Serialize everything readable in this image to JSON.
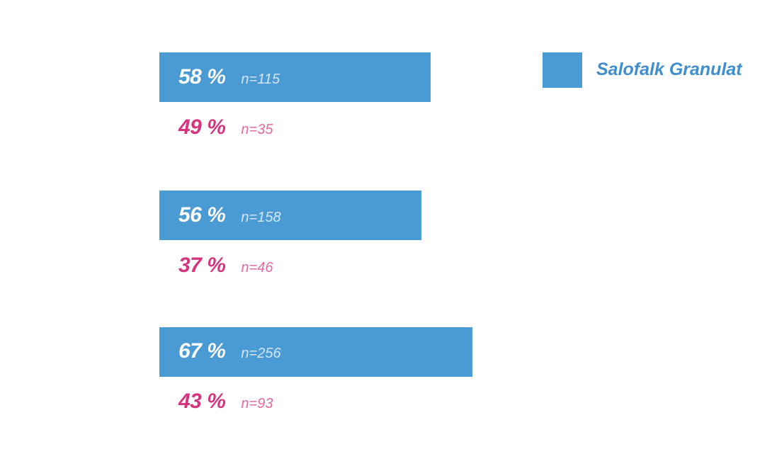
{
  "chart_data": {
    "type": "bar",
    "orientation": "horizontal",
    "legend": {
      "position": "top-right",
      "entries": [
        "Salofalk Granulat"
      ]
    },
    "groups": [
      {
        "series_value": 58,
        "series_label": "58 %",
        "series_n": "n=115",
        "comparison_value": 49,
        "comparison_label": "49 %",
        "comparison_n": "n=35"
      },
      {
        "series_value": 56,
        "series_label": "56 %",
        "series_n": "n=158",
        "comparison_value": 37,
        "comparison_label": "37 %",
        "comparison_n": "n=46"
      },
      {
        "series_value": 67,
        "series_label": "67 %",
        "series_n": "n=256",
        "comparison_value": 43,
        "comparison_label": "43 %",
        "comparison_n": "n=93"
      }
    ],
    "series": [
      {
        "name": "Salofalk Granulat",
        "values": [
          58,
          56,
          67
        ]
      },
      {
        "values": [
          49,
          37,
          43
        ]
      }
    ],
    "colors": {
      "bar": "#4a9ad4",
      "comparison_text": "#d6347e"
    }
  }
}
